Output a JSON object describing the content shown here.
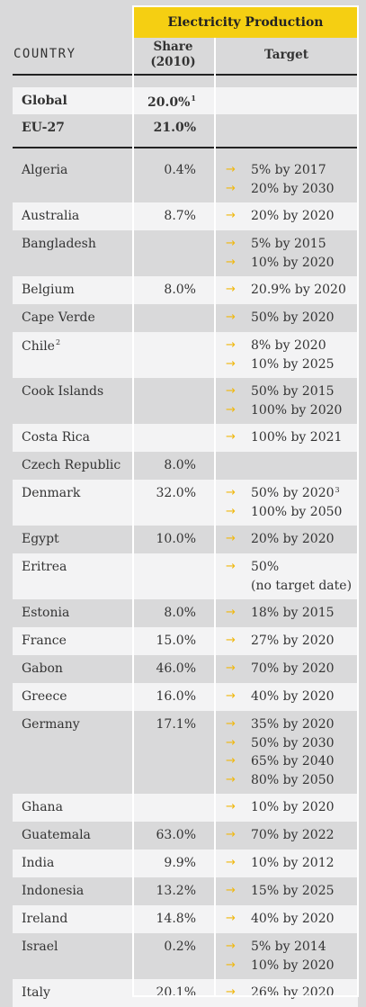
{
  "header": {
    "banner": "Electricity Production",
    "country": "COUNTRY",
    "share_line1": "Share",
    "share_line2": "(2010)",
    "target": "Target"
  },
  "summary_rows": [
    {
      "country": "Global",
      "share": "20.0%",
      "share_note": "1"
    },
    {
      "country": "EU-27",
      "share": "21.0%",
      "share_note": ""
    }
  ],
  "rows": [
    {
      "country": "Algeria",
      "note": "",
      "share": "0.4%",
      "targets": [
        {
          "text": "5% by 2017",
          "note": ""
        },
        {
          "text": "20% by 2030",
          "note": ""
        }
      ]
    },
    {
      "country": "Australia",
      "note": "",
      "share": "8.7%",
      "targets": [
        {
          "text": "20% by 2020",
          "note": ""
        }
      ]
    },
    {
      "country": "Bangladesh",
      "note": "",
      "share": "",
      "targets": [
        {
          "text": "5% by 2015",
          "note": ""
        },
        {
          "text": "10% by 2020",
          "note": ""
        }
      ]
    },
    {
      "country": "Belgium",
      "note": "",
      "share": "8.0%",
      "targets": [
        {
          "text": "20.9% by 2020",
          "note": ""
        }
      ]
    },
    {
      "country": "Cape Verde",
      "note": "",
      "share": "",
      "targets": [
        {
          "text": "50% by 2020",
          "note": ""
        }
      ]
    },
    {
      "country": "Chile",
      "note": "2",
      "share": "",
      "targets": [
        {
          "text": "8% by 2020",
          "note": ""
        },
        {
          "text": "10% by 2025",
          "note": ""
        }
      ]
    },
    {
      "country": "Cook Islands",
      "note": "",
      "share": "",
      "targets": [
        {
          "text": "50% by 2015",
          "note": ""
        },
        {
          "text": "100% by 2020",
          "note": ""
        }
      ]
    },
    {
      "country": "Costa Rica",
      "note": "",
      "share": "",
      "targets": [
        {
          "text": "100% by 2021",
          "note": ""
        }
      ]
    },
    {
      "country": "Czech Republic",
      "note": "",
      "share": "8.0%",
      "targets": []
    },
    {
      "country": "Denmark",
      "note": "",
      "share": "32.0%",
      "targets": [
        {
          "text": "50% by 2020",
          "note": "3"
        },
        {
          "text": "100% by 2050",
          "note": ""
        }
      ]
    },
    {
      "country": "Egypt",
      "note": "",
      "share": "10.0%",
      "targets": [
        {
          "text": "20% by 2020",
          "note": ""
        }
      ]
    },
    {
      "country": "Eritrea",
      "note": "",
      "share": "",
      "targets": [
        {
          "text": "50%",
          "note": ""
        },
        {
          "text": "(no target date)",
          "note": "",
          "noarrow": true
        }
      ]
    },
    {
      "country": "Estonia",
      "note": "",
      "share": "8.0%",
      "targets": [
        {
          "text": "18% by 2015",
          "note": ""
        }
      ]
    },
    {
      "country": "France",
      "note": "",
      "share": "15.0%",
      "targets": [
        {
          "text": "27% by 2020",
          "note": ""
        }
      ]
    },
    {
      "country": "Gabon",
      "note": "",
      "share": "46.0%",
      "targets": [
        {
          "text": "70% by 2020",
          "note": ""
        }
      ]
    },
    {
      "country": "Greece",
      "note": "",
      "share": "16.0%",
      "targets": [
        {
          "text": "40% by 2020",
          "note": ""
        }
      ]
    },
    {
      "country": "Germany",
      "note": "",
      "share": "17.1%",
      "targets": [
        {
          "text": "35% by 2020",
          "note": ""
        },
        {
          "text": "50% by 2030",
          "note": ""
        },
        {
          "text": "65% by 2040",
          "note": ""
        },
        {
          "text": "80% by 2050",
          "note": ""
        }
      ]
    },
    {
      "country": "Ghana",
      "note": "",
      "share": "",
      "targets": [
        {
          "text": "10% by 2020",
          "note": ""
        }
      ]
    },
    {
      "country": "Guatemala",
      "note": "",
      "share": "63.0%",
      "targets": [
        {
          "text": "70% by 2022",
          "note": ""
        }
      ]
    },
    {
      "country": "India",
      "note": "",
      "share": "9.9%",
      "targets": [
        {
          "text": "10% by 2012",
          "note": ""
        }
      ]
    },
    {
      "country": "Indonesia",
      "note": "",
      "share": "13.2%",
      "targets": [
        {
          "text": "15% by 2025",
          "note": ""
        }
      ]
    },
    {
      "country": "Ireland",
      "note": "",
      "share": "14.8%",
      "targets": [
        {
          "text": "40% by 2020",
          "note": ""
        }
      ]
    },
    {
      "country": "Israel",
      "note": "",
      "share": "0.2%",
      "targets": [
        {
          "text": "5% by 2014",
          "note": ""
        },
        {
          "text": "10% by 2020",
          "note": ""
        }
      ]
    },
    {
      "country": "Italy",
      "note": "",
      "share": "20.1%",
      "targets": [
        {
          "text": "26% by 2020",
          "note": ""
        }
      ]
    }
  ],
  "colors": {
    "accent": "#f5cf12",
    "arrow": "#f0b80f",
    "light_row": "#f3f3f4",
    "dark_row": "#d9d9da"
  },
  "icons": {
    "target_arrow": "arrow-right-icon",
    "glyph": "→"
  }
}
